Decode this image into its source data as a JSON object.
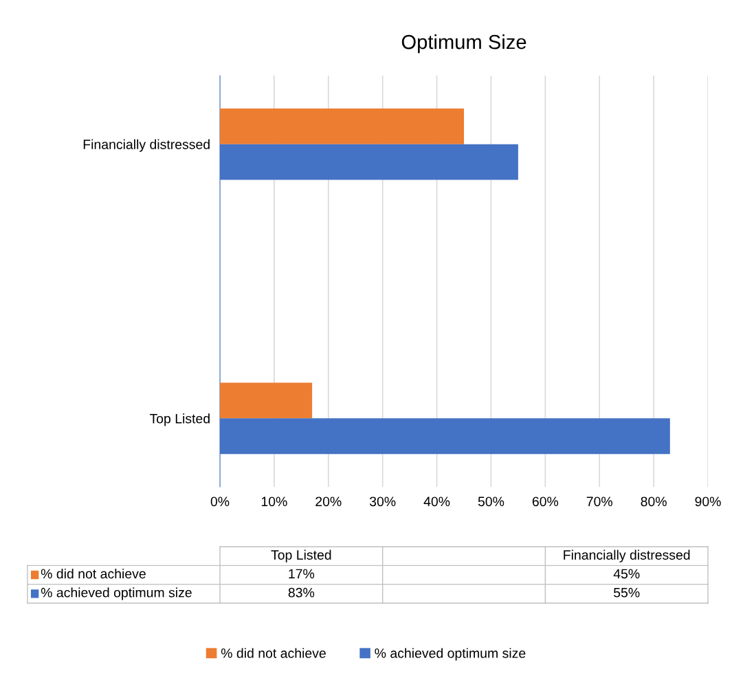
{
  "chart_data": {
    "type": "bar",
    "orientation": "horizontal",
    "title": "Optimum Size",
    "categories": [
      "Financially distressed",
      null,
      "Top Listed"
    ],
    "series": [
      {
        "name": "% did not achieve",
        "color": "#ed7d31",
        "values": [
          45,
          null,
          17
        ]
      },
      {
        "name": "% achieved optimum size",
        "color": "#4472c4",
        "values": [
          55,
          null,
          83
        ]
      }
    ],
    "annotations": [
      "17%",
      "45%",
      "83%",
      "55%"
    ],
    "xlim": [
      0,
      90
    ],
    "xticks": [
      {
        "value": 0,
        "label": "0%"
      },
      {
        "value": 10,
        "label": "10%"
      },
      {
        "value": 20,
        "label": "20%"
      },
      {
        "value": 30,
        "label": "30%"
      },
      {
        "value": 40,
        "label": "40%"
      },
      {
        "value": 50,
        "label": "50%"
      },
      {
        "value": 60,
        "label": "60%"
      },
      {
        "value": 70,
        "label": "70%"
      },
      {
        "value": 80,
        "label": "80%"
      },
      {
        "value": 90,
        "label": "90%"
      }
    ],
    "grid": "x",
    "legend": "bottom"
  }
}
